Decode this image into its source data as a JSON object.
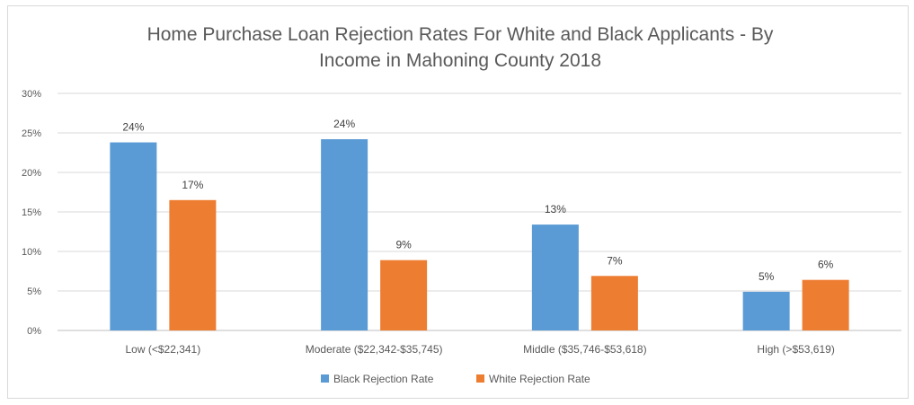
{
  "chart_data": {
    "type": "bar",
    "title_lines": [
      "Home Purchase Loan Rejection Rates For White and Black Applicants - By",
      "Income in Mahoning County 2018"
    ],
    "categories": [
      "Low (<$22,341)",
      "Moderate ($22,342-$35,745)",
      "Middle ($35,746-$53,618)",
      "High (>$53,619)"
    ],
    "series": [
      {
        "name": "Black Rejection Rate",
        "color": "#5b9bd5",
        "values": [
          23.8,
          24.2,
          13.4,
          4.9
        ],
        "labels": [
          "24%",
          "24%",
          "13%",
          "5%"
        ]
      },
      {
        "name": "White Rejection Rate",
        "color": "#ed7d31",
        "values": [
          16.5,
          8.9,
          6.9,
          6.4
        ],
        "labels": [
          "17%",
          "9%",
          "7%",
          "6%"
        ]
      }
    ],
    "yticks": [
      "0%",
      "5%",
      "10%",
      "15%",
      "20%",
      "25%",
      "30%"
    ],
    "ylim": [
      0,
      30
    ],
    "grid": true,
    "legend_position": "bottom"
  }
}
